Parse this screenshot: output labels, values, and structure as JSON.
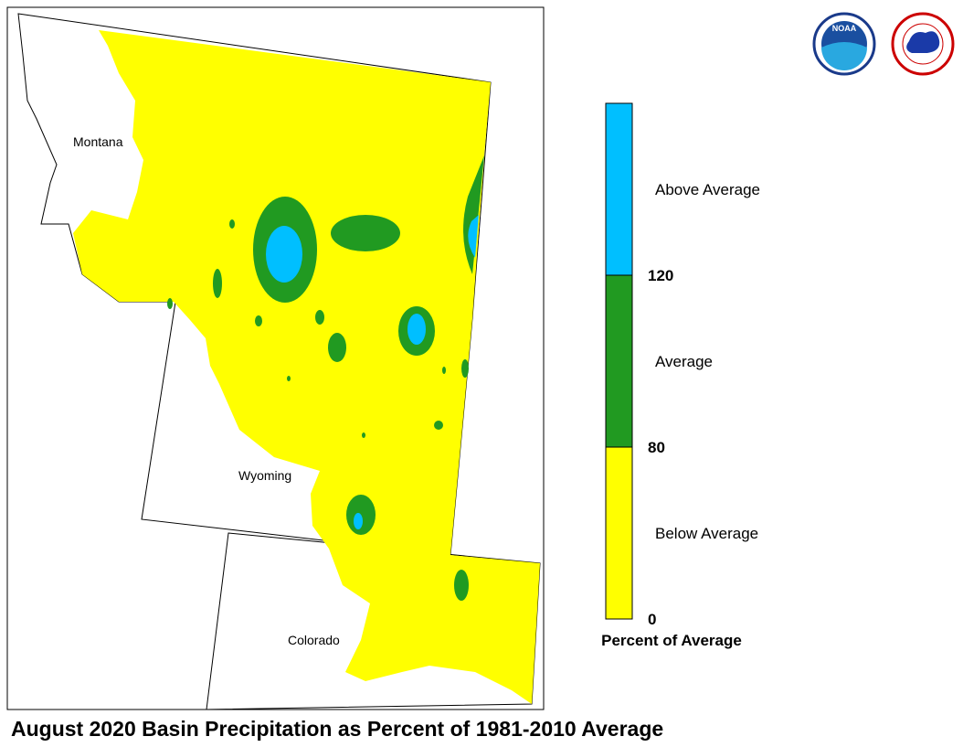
{
  "title": "August 2020 Basin Precipitation as Percent of 1981-2010 Average",
  "map": {
    "labels": [
      "Montana",
      "Wyoming",
      "Colorado"
    ]
  },
  "legend": {
    "title": "Percent of Average",
    "bands": [
      {
        "label": "Above Average",
        "color": "#00bfff"
      },
      {
        "label": "Average",
        "color": "#219a21"
      },
      {
        "label": "Below Average",
        "color": "#ffff00"
      }
    ],
    "ticks": [
      120,
      80,
      0
    ]
  },
  "logos": [
    "NOAA"
  ]
}
